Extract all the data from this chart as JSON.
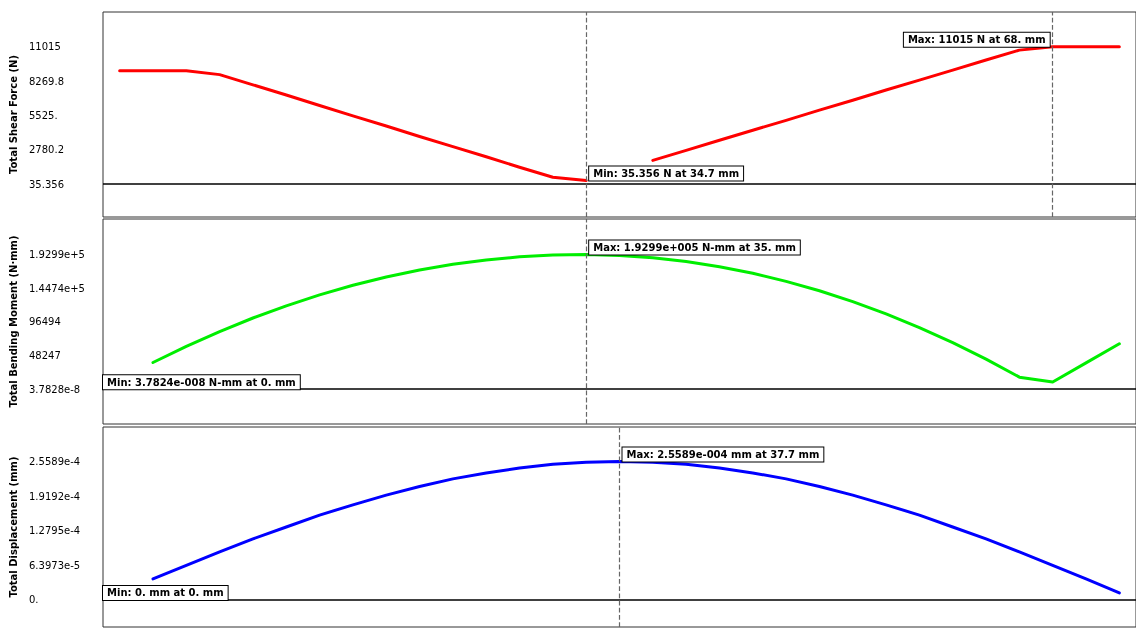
{
  "chart_data": [
    {
      "type": "line",
      "ylabel": "Total Shear Force (N)",
      "ylim": [
        -2600,
        13800
      ],
      "tick_labels": "y",
      "marker": "none",
      "line_style": "solid",
      "categories": [
        null,
        null,
        null,
        null,
        null,
        null,
        null,
        null,
        null,
        null,
        null,
        null,
        null,
        null,
        null,
        null,
        null,
        null,
        null,
        null,
        null,
        null,
        null,
        null,
        null,
        null,
        null,
        null,
        null,
        null,
        null
      ],
      "yticks": [
        {
          "value": 35.356,
          "label": "35.356"
        },
        {
          "value": 2780.2,
          "label": "2780.2"
        },
        {
          "value": 5525,
          "label": "5525."
        },
        {
          "value": 8269.8,
          "label": "8269.8"
        },
        {
          "value": 11015,
          "label": "11015"
        }
      ],
      "series": [
        {
          "color": "#ff0000",
          "values": [
            9100,
            9100,
            9100,
            8790,
            7975,
            7160,
            6320,
            5490,
            4680,
            3840,
            3030,
            2220,
            1380,
            580,
            320,
            null,
            1930,
            2730,
            3540,
            4340,
            5130,
            5950,
            6740,
            7560,
            8350,
            9150,
            9960,
            10750,
            11015,
            11015,
            11015
          ]
        }
      ],
      "ref_lines": [
        {
          "axis": "y",
          "value": 35.356,
          "color": "#000000",
          "line_style": "solid"
        }
      ],
      "annotations": [
        {
          "text": "Min: 35.356 N at 34.7 mm",
          "y": 35.356
        },
        "Max: 11015 N at 68. mm"
      ]
    },
    {
      "type": "line",
      "ylabel": "Total Bending Moment (N·mm)",
      "ylim": [
        -50000,
        244000
      ],
      "tick_labels": "y",
      "marker": "none",
      "line_style": "solid",
      "categories": [
        null,
        null,
        null,
        null,
        null,
        null,
        null,
        null,
        null,
        null,
        null,
        null,
        null,
        null,
        null,
        null,
        null,
        null,
        null,
        null,
        null,
        null,
        null,
        null,
        null,
        null,
        null,
        null,
        null,
        null,
        null
      ],
      "yticks": [
        {
          "value": 3.7828e-08,
          "label": "3.7828e-8"
        },
        {
          "value": 48247,
          "label": "48247"
        },
        {
          "value": 96494,
          "label": "96494"
        },
        {
          "value": 144740,
          "label": "1.4474e+5"
        },
        {
          "value": 192990,
          "label": "1.9299e+5"
        }
      ],
      "series": [
        {
          "color": "#00ee00",
          "values": [
            null,
            38200,
            61300,
            82600,
            102000,
            119500,
            135100,
            148900,
            160900,
            170900,
            179000,
            185300,
            189700,
            192300,
            193000,
            191700,
            188300,
            183000,
            175500,
            166100,
            154600,
            141100,
            125600,
            107900,
            88300,
            66700,
            43000,
            17200,
            10200,
            37600,
            65000
          ]
        }
      ],
      "ref_lines": [
        {
          "axis": "y",
          "value": 3.7828e-08,
          "color": "#000000",
          "line_style": "solid"
        }
      ],
      "annotations": [
        {
          "text": "Min: 3.7824e-008 N-mm at 0. mm",
          "y": 3.7828e-08
        },
        "Max: 1.9299e+005 N-mm at 35. mm"
      ]
    },
    {
      "type": "line",
      "ylabel": "Total Displacement (mm)",
      "ylim": [
        -5e-05,
        0.00032
      ],
      "tick_labels": "y",
      "marker": "none",
      "line_style": "solid",
      "categories": [
        null,
        null,
        null,
        null,
        null,
        null,
        null,
        null,
        null,
        null,
        null,
        null,
        null,
        null,
        null,
        null,
        null,
        null,
        null,
        null,
        null,
        null,
        null,
        null,
        null,
        null,
        null,
        null,
        null,
        null,
        null
      ],
      "yticks": [
        {
          "value": 0,
          "label": "0."
        },
        {
          "value": 6.3973e-05,
          "label": "6.3973e-5"
        },
        {
          "value": 0.00012795,
          "label": "1.2795e-4"
        },
        {
          "value": 0.00019192,
          "label": "1.9192e-4"
        },
        {
          "value": 0.00025589,
          "label": "2.5589e-4"
        }
      ],
      "series": [
        {
          "color": "#0000ff",
          "values": [
            null,
            3.9e-05,
            6.4e-05,
            8.9e-05,
            0.000113,
            0.000135,
            0.000157,
            0.000176,
            0.000194,
            0.00021,
            0.000224,
            0.000235,
            0.000244,
            0.000251,
            0.000255,
            0.000256,
            0.000255,
            0.000251,
            0.000244,
            0.000235,
            0.000224,
            0.00021,
            0.000194,
            0.000176,
            0.000157,
            0.000135,
            0.000113,
            8.9e-05,
            6.4e-05,
            3.9e-05,
            1.3e-05
          ]
        }
      ],
      "ref_lines": [
        {
          "axis": "y",
          "value": 0,
          "color": "#000000",
          "line_style": "solid"
        }
      ],
      "annotations": [
        {
          "text": "Min: 0. mm at 0. mm",
          "y": 0
        },
        "Max: 2.5589e-004 mm at 37.7 mm"
      ]
    }
  ]
}
